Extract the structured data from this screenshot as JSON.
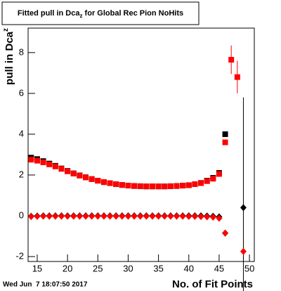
{
  "chart_data": {
    "type": "scatter",
    "title": {
      "main": "Fitted pull in Dca",
      "sub": "z",
      "rest": " for Global Rec Pion NoHits"
    },
    "y_label": {
      "main": "pull in Dca",
      "sub": "z"
    },
    "x_label": "No. of Fit Points",
    "footer": "Wed Jun  7 18:07:50 2017",
    "xlim": [
      13.5,
      50.8
    ],
    "ylim": [
      -2.24,
      9.2
    ],
    "xticks": [
      15,
      20,
      25,
      30,
      35,
      40,
      45,
      50
    ],
    "yticks": [
      -2,
      0,
      2,
      4,
      6,
      8
    ],
    "series": [
      {
        "marker": "square",
        "color": "#000000",
        "x": [
          14,
          15,
          16,
          17,
          18,
          19,
          20,
          21,
          22,
          23,
          24,
          25,
          26,
          27,
          28,
          29,
          30,
          31,
          32,
          33,
          34,
          35,
          36,
          37,
          38,
          39,
          40,
          41,
          42,
          43,
          44,
          45,
          46
        ],
        "values": [
          2.85,
          2.78,
          2.68,
          2.56,
          2.45,
          2.32,
          2.2,
          2.08,
          1.98,
          1.89,
          1.8,
          1.72,
          1.65,
          1.6,
          1.55,
          1.51,
          1.48,
          1.46,
          1.45,
          1.44,
          1.44,
          1.44,
          1.44,
          1.45,
          1.46,
          1.48,
          1.5,
          1.55,
          1.61,
          1.72,
          1.86,
          2.1,
          4.0
        ]
      },
      {
        "marker": "square",
        "color": "#ff0000",
        "x": [
          14,
          15,
          16,
          17,
          18,
          19,
          20,
          21,
          22,
          23,
          24,
          25,
          26,
          27,
          28,
          29,
          30,
          31,
          32,
          33,
          34,
          35,
          36,
          37,
          38,
          39,
          40,
          41,
          42,
          43,
          44,
          45,
          46,
          47,
          48
        ],
        "values": [
          2.75,
          2.7,
          2.62,
          2.52,
          2.42,
          2.3,
          2.18,
          2.07,
          1.97,
          1.88,
          1.8,
          1.72,
          1.65,
          1.6,
          1.55,
          1.51,
          1.48,
          1.46,
          1.45,
          1.44,
          1.44,
          1.44,
          1.44,
          1.45,
          1.46,
          1.48,
          1.5,
          1.55,
          1.6,
          1.7,
          1.82,
          2.05,
          3.6,
          7.65,
          6.8
        ],
        "errors": [
          null,
          null,
          null,
          null,
          null,
          null,
          null,
          null,
          null,
          null,
          null,
          null,
          null,
          null,
          null,
          null,
          null,
          null,
          null,
          null,
          null,
          null,
          null,
          null,
          null,
          null,
          null,
          null,
          null,
          null,
          null,
          null,
          null,
          0.7,
          0.8
        ]
      },
      {
        "marker": "diamond",
        "color": "#000000",
        "x": [
          14,
          15,
          16,
          17,
          18,
          19,
          20,
          21,
          22,
          23,
          24,
          25,
          26,
          27,
          28,
          29,
          30,
          31,
          32,
          33,
          34,
          35,
          36,
          37,
          38,
          39,
          40,
          41,
          42,
          43,
          44,
          45,
          46,
          49
        ],
        "values": [
          -0.02,
          -0.01,
          0,
          0,
          0,
          0,
          0,
          0,
          0,
          0,
          0,
          0,
          0,
          0,
          0,
          0,
          0,
          0,
          0,
          0,
          0,
          0,
          0,
          0,
          0,
          0,
          0,
          0,
          0,
          -0.01,
          -0.02,
          -0.05,
          -0.85,
          0.4
        ],
        "errors": [
          null,
          null,
          null,
          null,
          null,
          null,
          null,
          null,
          null,
          null,
          null,
          null,
          null,
          null,
          null,
          null,
          null,
          null,
          null,
          null,
          null,
          null,
          null,
          null,
          null,
          null,
          null,
          null,
          null,
          null,
          null,
          null,
          null,
          5.4
        ]
      },
      {
        "marker": "diamond",
        "color": "#ff0000",
        "x": [
          14,
          15,
          16,
          17,
          18,
          19,
          20,
          21,
          22,
          23,
          24,
          25,
          26,
          27,
          28,
          29,
          30,
          31,
          32,
          33,
          34,
          35,
          36,
          37,
          38,
          39,
          40,
          41,
          42,
          43,
          44,
          45,
          46,
          49
        ],
        "values": [
          -0.04,
          -0.03,
          -0.02,
          -0.02,
          -0.02,
          -0.02,
          -0.02,
          -0.02,
          -0.02,
          -0.02,
          -0.02,
          -0.02,
          -0.02,
          -0.02,
          -0.02,
          -0.02,
          -0.02,
          -0.02,
          -0.02,
          -0.02,
          -0.02,
          -0.02,
          -0.02,
          -0.02,
          -0.02,
          -0.02,
          -0.03,
          -0.03,
          -0.04,
          -0.05,
          -0.07,
          -0.12,
          -0.85,
          -1.75
        ]
      }
    ]
  }
}
